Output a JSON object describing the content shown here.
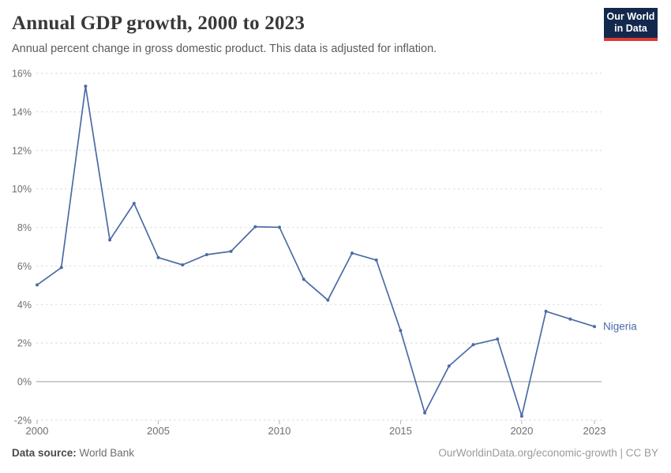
{
  "header": {
    "title": "Annual GDP growth, 2000 to 2023",
    "subtitle": "Annual percent change in gross domestic product. This data is adjusted for inflation.",
    "logo": {
      "line1": "Our World",
      "line2": "in Data",
      "bg_color": "#12294d",
      "accent_color": "#dc3a34"
    }
  },
  "footer": {
    "datasource_label": "Data source:",
    "datasource_value": " World Bank",
    "attribution": "OurWorldinData.org/economic-growth | CC BY"
  },
  "chart_data": {
    "type": "line",
    "title": "Annual GDP growth, 2000 to 2023",
    "xlabel": "",
    "ylabel": "",
    "xlim": [
      2000,
      2023
    ],
    "ylim": [
      -2,
      16
    ],
    "grid": "dashed horizontal gridlines, solid zero line",
    "legend_position": "end-of-line label",
    "x_ticks": [
      2000,
      2005,
      2010,
      2015,
      2020,
      2023
    ],
    "y_ticks": [
      -2,
      0,
      2,
      4,
      6,
      8,
      10,
      12,
      14,
      16
    ],
    "y_tick_suffix": "%",
    "x": [
      2000,
      2001,
      2002,
      2003,
      2004,
      2005,
      2006,
      2007,
      2008,
      2009,
      2010,
      2011,
      2012,
      2013,
      2014,
      2015,
      2016,
      2017,
      2018,
      2019,
      2020,
      2021,
      2022,
      2023
    ],
    "series": [
      {
        "name": "Nigeria",
        "color": "#4c6ba6",
        "values": [
          5.02,
          5.92,
          15.33,
          7.35,
          9.25,
          6.44,
          6.06,
          6.59,
          6.76,
          8.04,
          8.01,
          5.31,
          4.23,
          6.67,
          6.31,
          2.65,
          -1.62,
          0.81,
          1.92,
          2.21,
          -1.79,
          3.65,
          3.25,
          2.86
        ]
      }
    ],
    "colors": {
      "gridline": "#e0e0e0",
      "zero_line": "#9a9a9a",
      "tick_text": "#6e6e6e",
      "axis_tick": "#b3b3b3"
    }
  }
}
